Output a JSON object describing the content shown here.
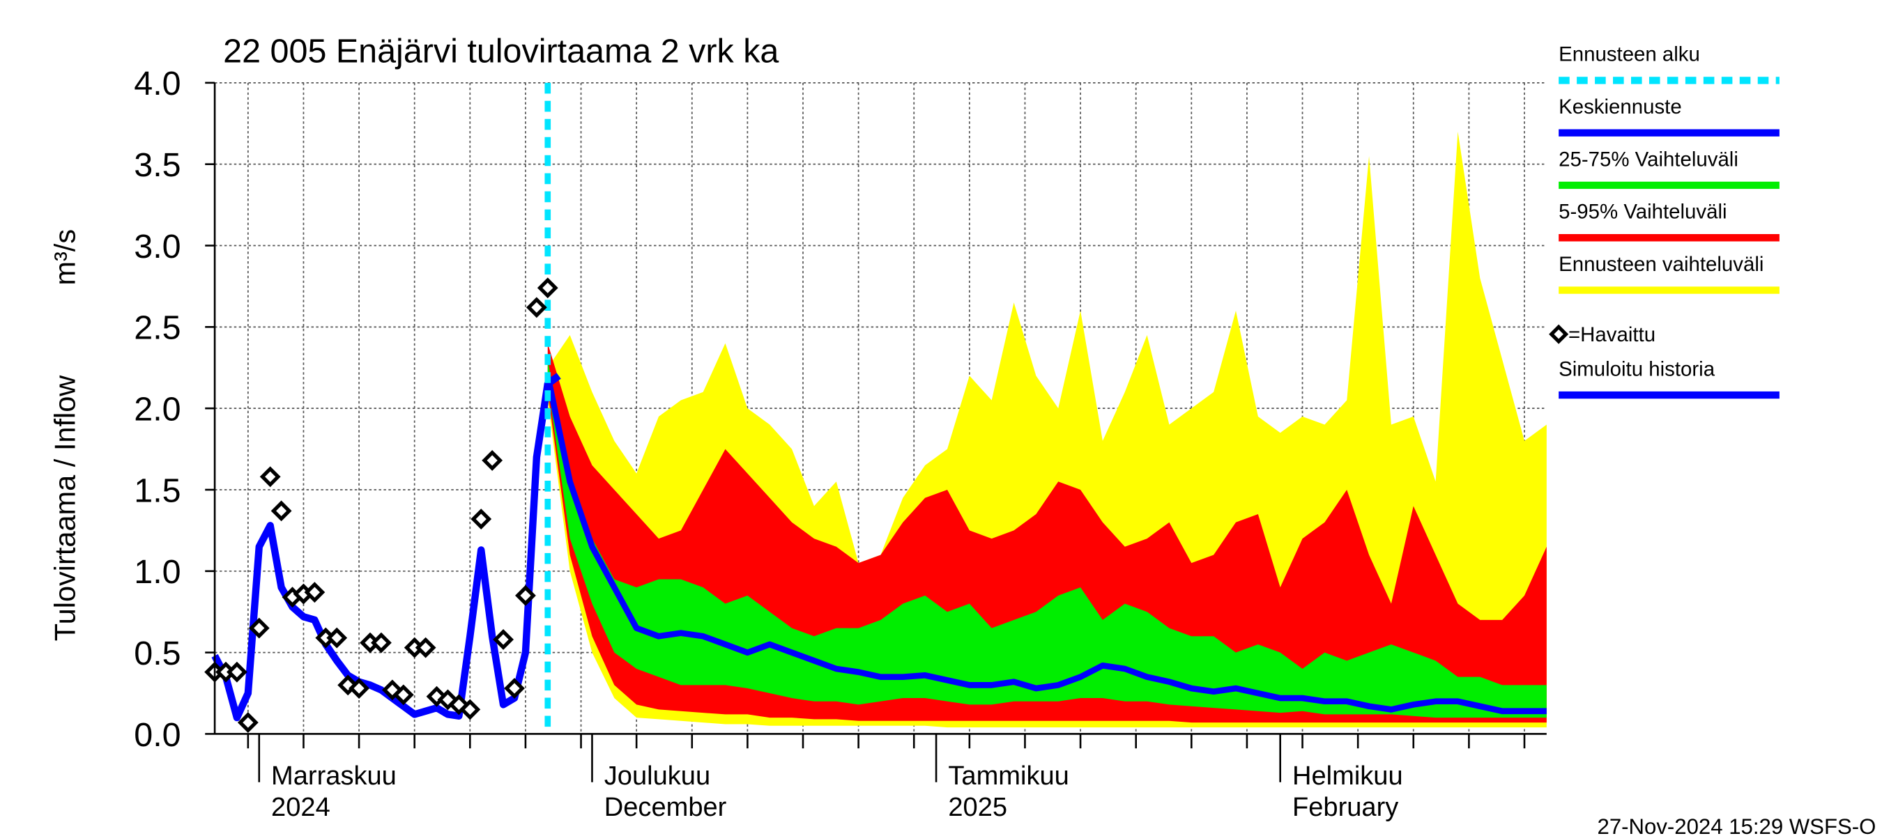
{
  "chart_data": {
    "type": "line",
    "title": "22 005 Enäjärvi tulovirtaama 2 vrk ka",
    "ylabel": "Tulovirtaama / Inflow",
    "yunit": "m³/s",
    "footer": "27-Nov-2024 15:29 WSFS-O",
    "ylim": [
      0,
      4
    ],
    "yticks": [
      {
        "value": 0,
        "label": "0.0"
      },
      {
        "value": 0.5,
        "label": "0.5"
      },
      {
        "value": 1,
        "label": "1.0"
      },
      {
        "value": 1.5,
        "label": "1.5"
      },
      {
        "value": 2,
        "label": "2.0"
      },
      {
        "value": 2.5,
        "label": "2.5"
      },
      {
        "value": 3,
        "label": "3.0"
      },
      {
        "value": 3.5,
        "label": "3.5"
      },
      {
        "value": 4,
        "label": "4.0"
      }
    ],
    "xlim": [
      0,
      120
    ],
    "xgrid": [
      3,
      8,
      13,
      18,
      23,
      28,
      33,
      38,
      43,
      48,
      53,
      58,
      63,
      68,
      73,
      78,
      83,
      88,
      93,
      98,
      103,
      108,
      113,
      118
    ],
    "month_ticks": [
      {
        "value": 4,
        "label": "Marraskuu",
        "label2": "2024"
      },
      {
        "value": 34,
        "label": "Joulukuu",
        "label2": "December"
      },
      {
        "value": 65,
        "label": "Tammikuu",
        "label2": "2025"
      },
      {
        "value": 96,
        "label": "Helmikuu",
        "label2": "February"
      }
    ],
    "grid": true,
    "forecast_start": {
      "name": "Ennusteen alku",
      "color": "#00e5ff",
      "x": 30
    },
    "forecast_x": [
      30,
      32,
      34,
      36,
      38,
      40,
      42,
      44,
      46,
      48,
      50,
      52,
      54,
      56,
      58,
      60,
      62,
      64,
      66,
      68,
      70,
      72,
      74,
      76,
      78,
      80,
      82,
      84,
      86,
      88,
      90,
      92,
      94,
      96,
      98,
      100,
      102,
      104,
      106,
      108,
      110,
      112,
      114,
      116,
      118,
      120
    ],
    "bands": [
      {
        "name": "Ennusteen vaihteluväli",
        "color": "#ffff00",
        "high": [
          2.25,
          2.45,
          2.1,
          1.8,
          1.6,
          1.95,
          2.05,
          2.1,
          2.4,
          2.0,
          1.9,
          1.75,
          1.4,
          1.55,
          1.05,
          1.1,
          1.45,
          1.65,
          1.75,
          2.2,
          2.05,
          2.65,
          2.2,
          2.0,
          2.6,
          1.8,
          2.1,
          2.45,
          1.9,
          2.0,
          2.1,
          2.6,
          1.95,
          1.85,
          1.95,
          1.9,
          2.05,
          3.55,
          1.9,
          1.95,
          1.55,
          3.7,
          2.8,
          2.3,
          1.8,
          1.9
        ],
        "low": [
          2.05,
          1.0,
          0.5,
          0.22,
          0.1,
          0.09,
          0.08,
          0.07,
          0.06,
          0.06,
          0.05,
          0.05,
          0.05,
          0.05,
          0.05,
          0.05,
          0.05,
          0.05,
          0.04,
          0.04,
          0.04,
          0.04,
          0.04,
          0.04,
          0.04,
          0.04,
          0.04,
          0.04,
          0.04,
          0.04,
          0.04,
          0.04,
          0.04,
          0.04,
          0.04,
          0.04,
          0.04,
          0.04,
          0.04,
          0.04,
          0.04,
          0.04,
          0.04,
          0.04,
          0.04,
          0.04
        ]
      },
      {
        "name": "5-95% Vaihteluväli",
        "color": "#ff0000",
        "high": [
          2.4,
          1.95,
          1.65,
          1.5,
          1.35,
          1.2,
          1.25,
          1.5,
          1.75,
          1.6,
          1.45,
          1.3,
          1.2,
          1.15,
          1.05,
          1.1,
          1.3,
          1.45,
          1.5,
          1.25,
          1.2,
          1.25,
          1.35,
          1.55,
          1.5,
          1.3,
          1.15,
          1.2,
          1.3,
          1.05,
          1.1,
          1.3,
          1.35,
          0.9,
          1.2,
          1.3,
          1.5,
          1.1,
          0.8,
          1.4,
          1.1,
          0.8,
          0.7,
          0.7,
          0.85,
          1.15
        ],
        "low": [
          2.1,
          1.1,
          0.6,
          0.3,
          0.18,
          0.15,
          0.14,
          0.13,
          0.12,
          0.12,
          0.1,
          0.1,
          0.09,
          0.09,
          0.08,
          0.08,
          0.08,
          0.08,
          0.08,
          0.08,
          0.08,
          0.08,
          0.08,
          0.08,
          0.08,
          0.08,
          0.08,
          0.08,
          0.08,
          0.07,
          0.07,
          0.07,
          0.07,
          0.07,
          0.07,
          0.07,
          0.07,
          0.07,
          0.07,
          0.07,
          0.07,
          0.07,
          0.07,
          0.07,
          0.07,
          0.07
        ]
      },
      {
        "name": "25-75% Vaihteluväli",
        "color": "#00ee00",
        "high": [
          2.3,
          1.5,
          1.2,
          0.95,
          0.9,
          0.95,
          0.95,
          0.9,
          0.8,
          0.85,
          0.75,
          0.65,
          0.6,
          0.65,
          0.65,
          0.7,
          0.8,
          0.85,
          0.75,
          0.8,
          0.65,
          0.7,
          0.75,
          0.85,
          0.9,
          0.7,
          0.8,
          0.75,
          0.65,
          0.6,
          0.6,
          0.5,
          0.55,
          0.5,
          0.4,
          0.5,
          0.45,
          0.5,
          0.55,
          0.5,
          0.45,
          0.35,
          0.35,
          0.3,
          0.3,
          0.3
        ],
        "low": [
          2.15,
          1.2,
          0.8,
          0.5,
          0.4,
          0.35,
          0.3,
          0.3,
          0.3,
          0.28,
          0.25,
          0.22,
          0.2,
          0.2,
          0.18,
          0.2,
          0.22,
          0.22,
          0.2,
          0.18,
          0.18,
          0.2,
          0.2,
          0.2,
          0.22,
          0.22,
          0.2,
          0.2,
          0.18,
          0.17,
          0.16,
          0.15,
          0.14,
          0.13,
          0.14,
          0.12,
          0.12,
          0.12,
          0.12,
          0.11,
          0.1,
          0.1,
          0.1,
          0.1,
          0.1,
          0.1
        ]
      }
    ],
    "series": [
      {
        "name": "Keskiennuste",
        "color": "#0000ff",
        "values": [
          2.2,
          1.55,
          1.15,
          0.9,
          0.65,
          0.6,
          0.62,
          0.6,
          0.55,
          0.5,
          0.55,
          0.5,
          0.45,
          0.4,
          0.38,
          0.35,
          0.35,
          0.36,
          0.33,
          0.3,
          0.3,
          0.32,
          0.28,
          0.3,
          0.35,
          0.42,
          0.4,
          0.35,
          0.32,
          0.28,
          0.26,
          0.28,
          0.25,
          0.22,
          0.22,
          0.2,
          0.2,
          0.17,
          0.15,
          0.18,
          0.2,
          0.2,
          0.17,
          0.14,
          0.14,
          0.14
        ]
      }
    ],
    "observed": {
      "name": "=Havaittu",
      "x": [
        0,
        1,
        2,
        3,
        4,
        5,
        6,
        7,
        8,
        9,
        10,
        11,
        12,
        13,
        14,
        15,
        16,
        17,
        18,
        19,
        20,
        21,
        22,
        23,
        24,
        25,
        26,
        27,
        28,
        29,
        30
      ],
      "values": [
        0.38,
        0.38,
        0.38,
        0.07,
        0.65,
        1.58,
        1.37,
        0.84,
        0.86,
        0.87,
        0.59,
        0.59,
        0.3,
        0.28,
        0.56,
        0.56,
        0.27,
        0.24,
        0.53,
        0.53,
        0.23,
        0.21,
        0.18,
        0.15,
        1.32,
        1.68,
        0.58,
        0.28,
        0.85,
        2.62,
        2.74
      ]
    },
    "simulated": {
      "name": "Simuloitu historia",
      "color": "#0000ff",
      "x": [
        0,
        1,
        2,
        3,
        4,
        5,
        6,
        7,
        8,
        9,
        10,
        11,
        12,
        13,
        14,
        15,
        16,
        17,
        18,
        19,
        20,
        21,
        22,
        23,
        24,
        25,
        26,
        27,
        28,
        29,
        30,
        31
      ],
      "values": [
        0.48,
        0.35,
        0.1,
        0.25,
        1.15,
        1.28,
        0.9,
        0.78,
        0.72,
        0.7,
        0.55,
        0.45,
        0.36,
        0.32,
        0.3,
        0.27,
        0.22,
        0.17,
        0.12,
        0.14,
        0.16,
        0.12,
        0.11,
        0.6,
        1.13,
        0.6,
        0.18,
        0.22,
        0.5,
        1.7,
        2.15,
        2.2
      ]
    }
  }
}
